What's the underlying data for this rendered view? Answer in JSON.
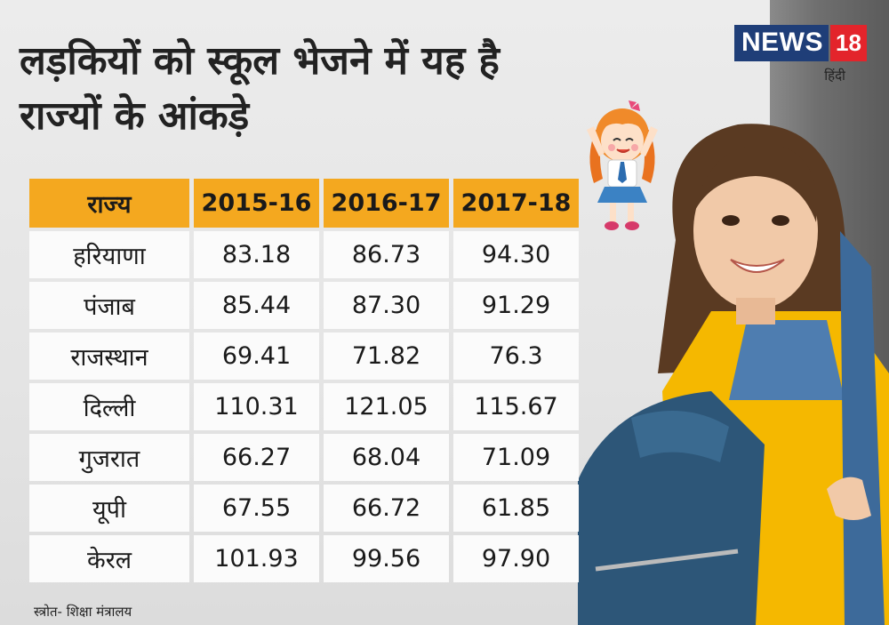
{
  "title": {
    "line1": "लड़कियों को स्कूल भेजने में यह है",
    "line2": "राज्यों के आंकड़े"
  },
  "logo": {
    "news": "NEWS",
    "number": "18",
    "sub": "हिंदी"
  },
  "table": {
    "headers": [
      "राज्य",
      "2015-16",
      "2016-17",
      "2017-18"
    ],
    "rows": [
      [
        "हरियाणा",
        "83.18",
        "86.73",
        "94.30"
      ],
      [
        "पंजाब",
        "85.44",
        "87.30",
        "91.29"
      ],
      [
        "राजस्थान",
        "69.41",
        "71.82",
        "76.3"
      ],
      [
        "दिल्ली",
        "110.31",
        "121.05",
        "115.67"
      ],
      [
        "गुजरात",
        "66.27",
        "68.04",
        "71.09"
      ],
      [
        "यूपी",
        "67.55",
        "66.72",
        "61.85"
      ],
      [
        "केरल",
        "101.93",
        "99.56",
        "97.90"
      ]
    ]
  },
  "source": "स्त्रोत- शिक्षा मंत्रालय",
  "colors": {
    "header": "#f4a81f",
    "cell": "#fbfbfb",
    "brand_blue": "#1f3e78",
    "brand_red": "#e3242b"
  }
}
